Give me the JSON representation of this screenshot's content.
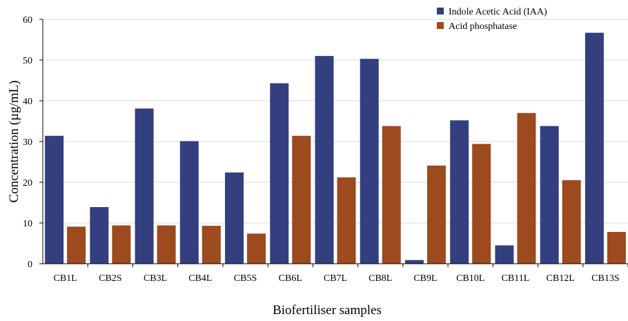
{
  "chart_data": {
    "type": "bar",
    "xlabel": "Biofertiliser samples",
    "ylabel": "Concentration (µg/mL)",
    "ylim": [
      0,
      60
    ],
    "yticks": [
      "0",
      "10",
      "20",
      "30",
      "40",
      "50",
      "60"
    ],
    "grid": true,
    "legend_position": "top-right",
    "categories": [
      "CB1L",
      "CB2S",
      "CB3L",
      "CB4L",
      "CB5S",
      "CB6L",
      "CB7L",
      "CB8L",
      "CB9L",
      "CB10L",
      "CB11L",
      "CB12L",
      "CB13S"
    ],
    "series": [
      {
        "name": "Indole Acetic Acid (IAA)",
        "color": "#333F7F",
        "values": [
          31.4,
          13.9,
          38.1,
          30.1,
          22.4,
          44.3,
          51.0,
          50.3,
          0.9,
          35.2,
          4.5,
          33.8,
          56.7
        ]
      },
      {
        "name": "Acid phosphatase",
        "color": "#9C4A1E",
        "values": [
          9.1,
          9.4,
          9.4,
          9.3,
          7.4,
          31.4,
          21.2,
          33.8,
          24.1,
          29.4,
          37.0,
          20.5,
          7.8
        ]
      }
    ]
  }
}
